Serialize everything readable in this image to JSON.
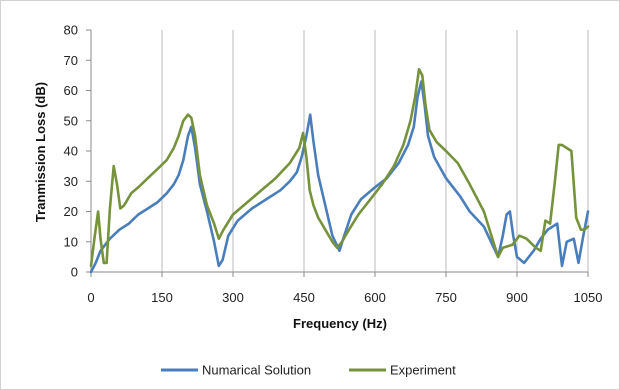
{
  "chart_data": {
    "type": "line",
    "title": "",
    "xlabel": "Frequency (Hz)",
    "ylabel": "Tranmission Loss (dB)",
    "xlim": [
      0,
      1050
    ],
    "ylim": [
      0,
      80
    ],
    "xticks": [
      0,
      150,
      300,
      450,
      600,
      750,
      900,
      1050
    ],
    "yticks": [
      0,
      10,
      20,
      30,
      40,
      50,
      60,
      70,
      80
    ],
    "grid": {
      "vertical": true,
      "horizontal": false
    },
    "legend_position": "bottom",
    "series": [
      {
        "name": "Numarical Solution",
        "color": "#4a7ebb",
        "x": [
          0,
          10,
          20,
          40,
          60,
          80,
          100,
          120,
          140,
          160,
          175,
          185,
          195,
          205,
          212,
          220,
          230,
          245,
          260,
          270,
          278,
          290,
          310,
          340,
          370,
          400,
          420,
          435,
          445,
          455,
          463,
          470,
          480,
          495,
          510,
          525,
          535,
          550,
          570,
          600,
          625,
          650,
          670,
          682,
          690,
          698,
          705,
          712,
          725,
          750,
          780,
          800,
          830,
          845,
          860,
          870,
          878,
          885,
          892,
          900,
          915,
          935,
          950,
          965,
          985,
          995,
          1005,
          1020,
          1030,
          1040,
          1050
        ],
        "y": [
          0,
          3,
          7,
          11,
          14,
          16,
          19,
          21,
          23,
          26,
          29,
          32,
          37,
          45,
          48,
          41,
          29,
          20,
          10,
          2,
          4,
          12,
          17,
          21,
          24,
          27,
          30,
          33,
          38,
          45,
          52,
          43,
          32,
          22,
          12,
          7,
          12,
          19,
          24,
          28,
          31,
          36,
          42,
          48,
          58,
          63,
          55,
          45,
          38,
          31,
          25,
          20,
          15,
          10,
          5,
          12,
          19,
          20,
          12,
          5,
          3,
          7,
          11,
          14,
          16,
          2,
          10,
          11,
          3,
          12,
          20
        ]
      },
      {
        "name": "Experiment",
        "color": "#76923c",
        "x": [
          0,
          8,
          15,
          20,
          27,
          33,
          40,
          48,
          55,
          62,
          70,
          85,
          100,
          120,
          140,
          160,
          175,
          185,
          195,
          205,
          212,
          220,
          230,
          245,
          260,
          270,
          280,
          300,
          330,
          360,
          390,
          420,
          440,
          448,
          455,
          462,
          470,
          480,
          495,
          510,
          520,
          530,
          545,
          565,
          590,
          615,
          640,
          660,
          675,
          685,
          693,
          700,
          707,
          715,
          730,
          750,
          775,
          800,
          830,
          850,
          860,
          870,
          890,
          905,
          920,
          940,
          950,
          960,
          970,
          980,
          988,
          995,
          1005,
          1015,
          1025,
          1035,
          1042,
          1050
        ],
        "y": [
          2,
          12,
          20,
          11,
          3,
          3,
          21,
          35,
          29,
          21,
          22,
          26,
          28,
          31,
          34,
          37,
          41,
          45,
          50,
          52,
          51,
          45,
          32,
          22,
          16,
          11,
          14,
          19,
          23,
          27,
          31,
          36,
          41,
          46,
          38,
          27,
          22,
          18,
          14,
          10,
          8,
          10,
          14,
          19,
          24,
          29,
          35,
          42,
          50,
          58,
          67,
          65,
          55,
          47,
          43,
          40,
          36,
          29,
          20,
          10,
          5,
          8,
          9,
          12,
          11,
          8,
          7,
          17,
          16,
          30,
          42,
          42,
          41,
          40,
          18,
          14,
          14,
          15
        ]
      }
    ]
  }
}
